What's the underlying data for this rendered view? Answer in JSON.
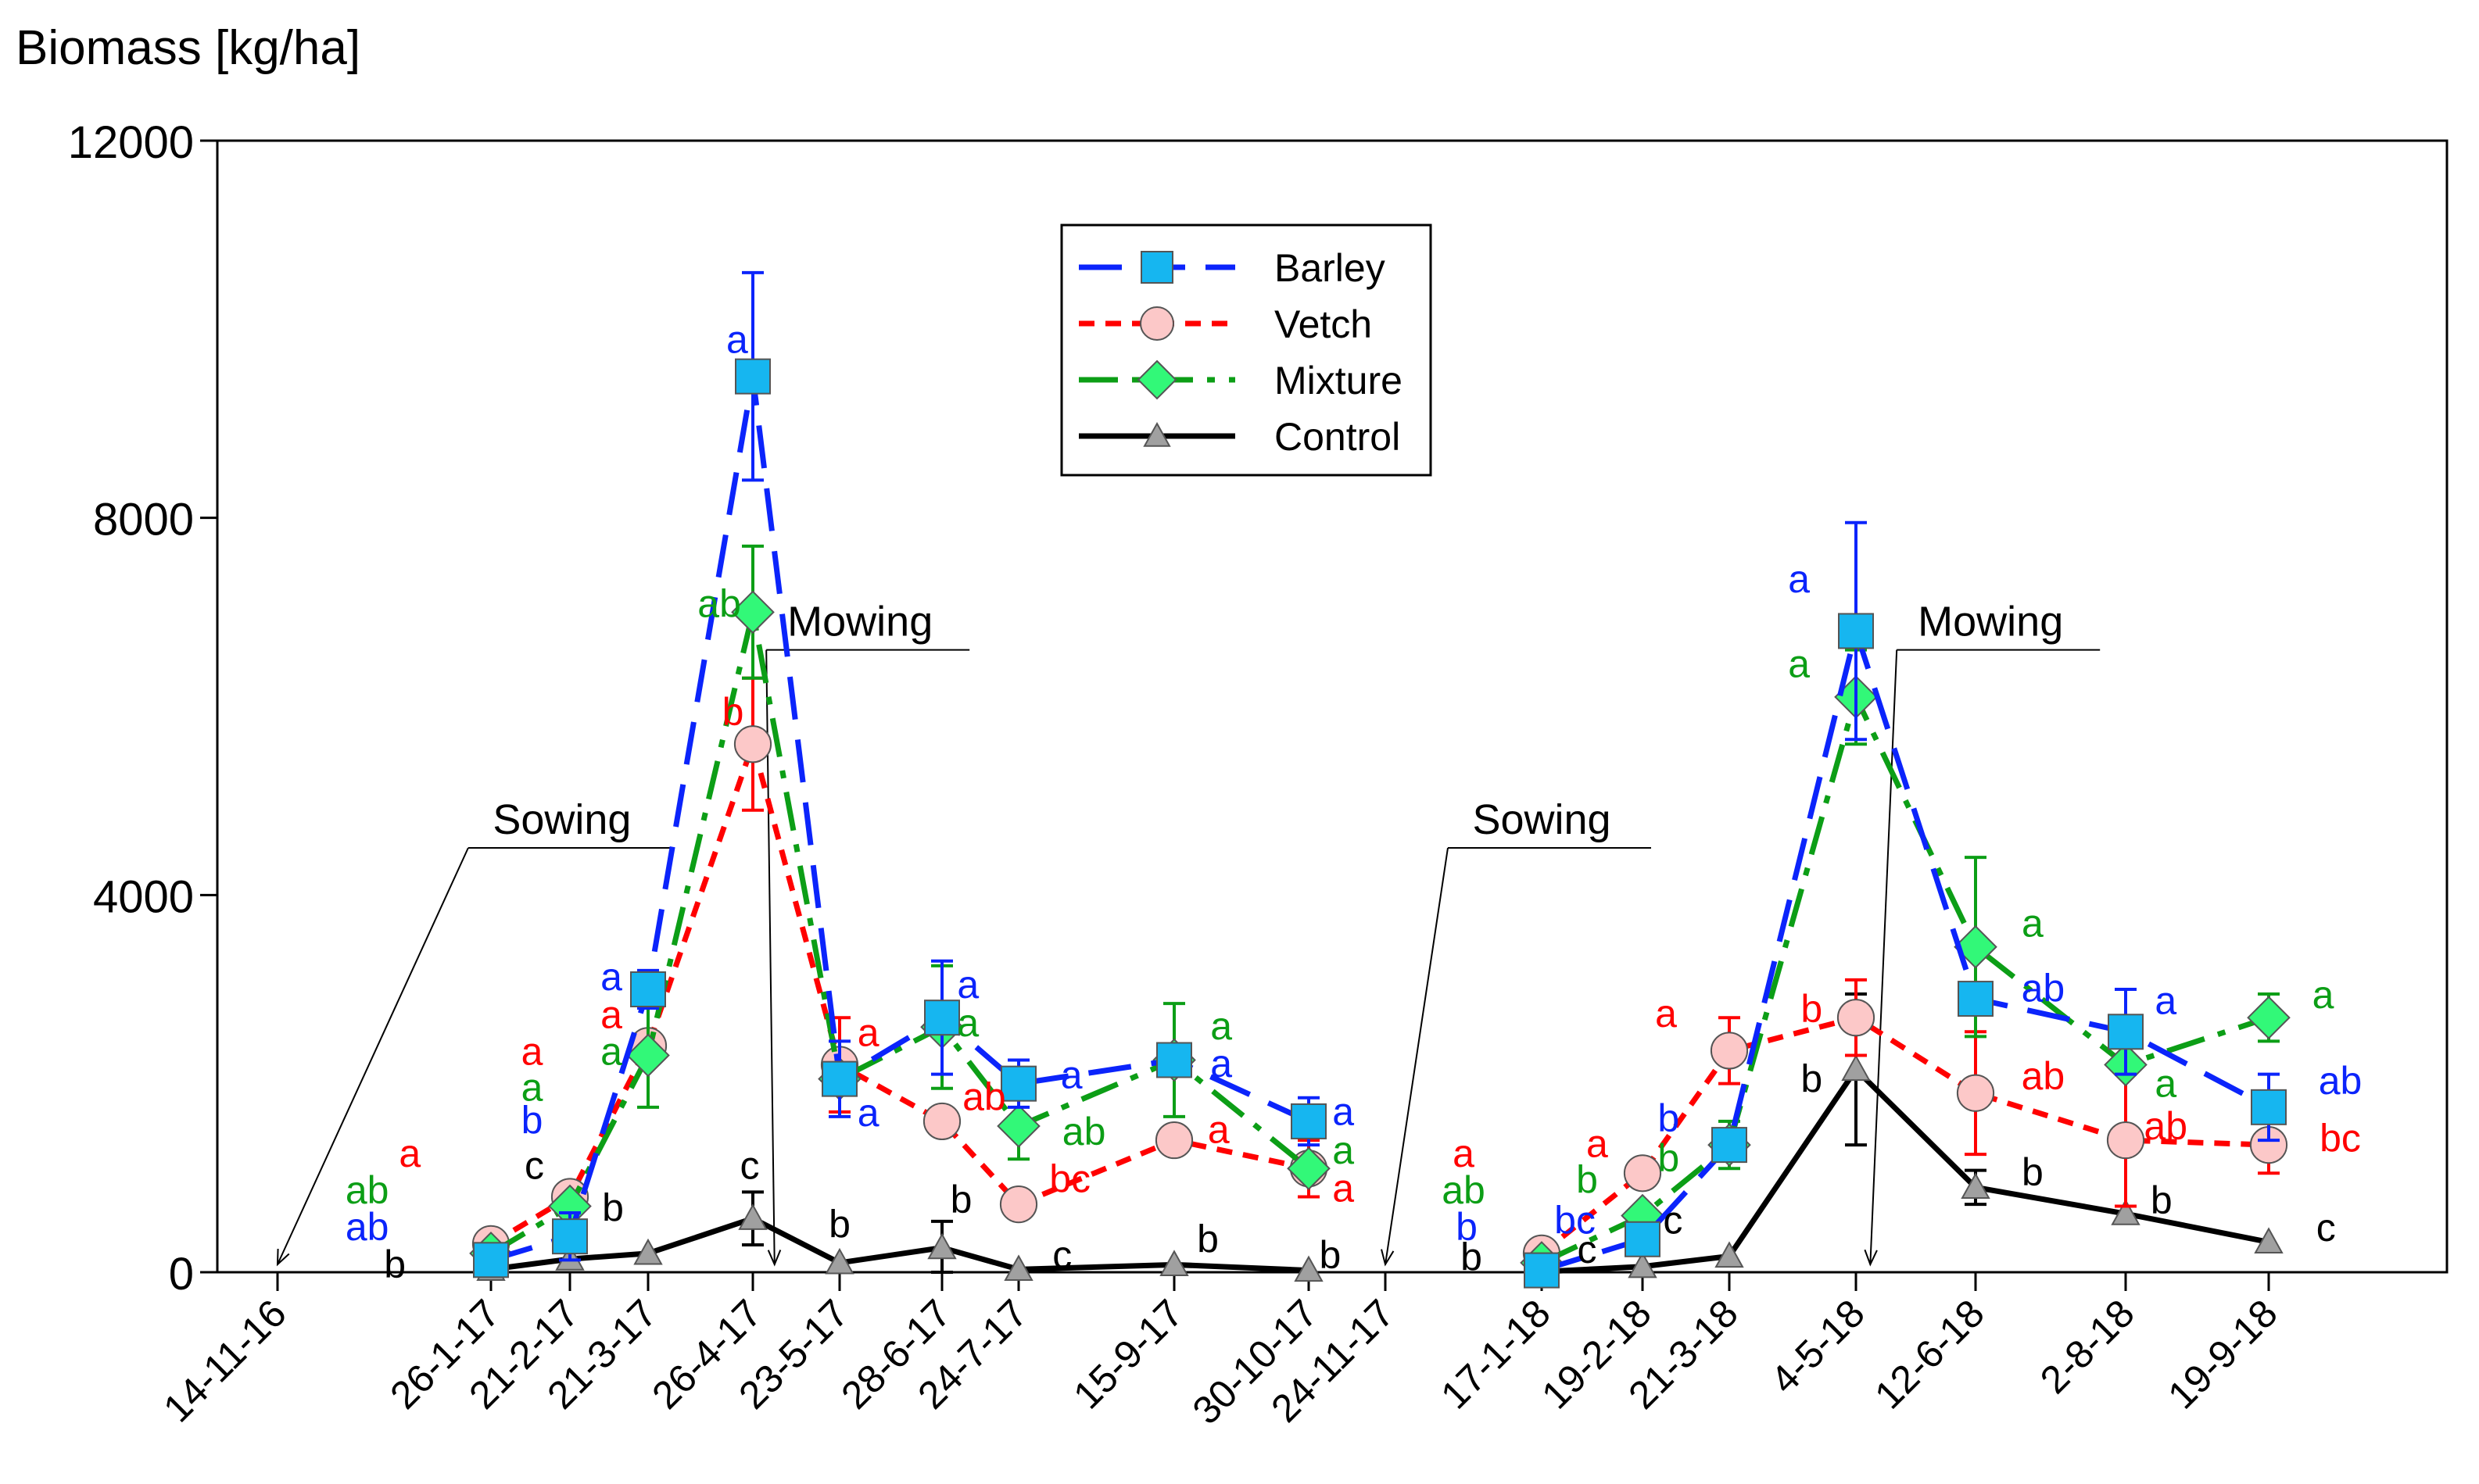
{
  "chart_data": {
    "type": "line",
    "title": "Biomass [kg/ha]",
    "ylim": [
      0,
      12000
    ],
    "yticks": [
      0,
      4000,
      8000,
      12000
    ],
    "categories": [
      "14-11-16",
      "26-1-17",
      "21-2-17",
      "21-3-17",
      "26-4-17",
      "23-5-17",
      "28-6-17",
      "24-7-17",
      "15-9-17",
      "30-10-17",
      "24-11-17",
      "17-1-18",
      "19-2-18",
      "21-3-18",
      "4-5-18",
      "12-6-18",
      "2-8-18",
      "19-9-18"
    ],
    "legend_position": "top-center",
    "series": [
      {
        "name": "Barley",
        "color": "#0b24fb",
        "fill": "#16b6f0",
        "marker": "square",
        "dash": "dash",
        "points": [
          [
            1,
            130
          ],
          [
            2,
            380
          ],
          [
            3,
            3000
          ],
          [
            4,
            9500
          ],
          [
            5,
            2050
          ],
          [
            6,
            2700
          ],
          [
            7,
            2000
          ],
          [
            8,
            2250
          ],
          [
            9,
            1600
          ],
          [
            11,
            20
          ],
          [
            12,
            350
          ],
          [
            13,
            1350
          ],
          [
            14,
            6800
          ],
          [
            15,
            2900
          ],
          [
            16,
            2550
          ],
          [
            17,
            1750
          ]
        ],
        "err": [
          null,
          250,
          200,
          1100,
          400,
          600,
          250,
          null,
          250,
          null,
          150,
          null,
          1150,
          null,
          450,
          350
        ]
      },
      {
        "name": "Vetch",
        "color": "#ff0000",
        "fill": "#fcc8c8",
        "marker": "circle",
        "dash": "dot",
        "points": [
          [
            1,
            300
          ],
          [
            2,
            800
          ],
          [
            3,
            2400
          ],
          [
            4,
            5600
          ],
          [
            5,
            2200
          ],
          [
            6,
            1600
          ],
          [
            7,
            720
          ],
          [
            8,
            1400
          ],
          [
            9,
            1100
          ],
          [
            11,
            200
          ],
          [
            12,
            1050
          ],
          [
            13,
            2350
          ],
          [
            14,
            2700
          ],
          [
            15,
            1900
          ],
          [
            16,
            1400
          ],
          [
            17,
            1350
          ]
        ],
        "err": [
          null,
          null,
          null,
          700,
          500,
          null,
          60,
          null,
          300,
          null,
          null,
          350,
          400,
          650,
          700,
          300
        ]
      },
      {
        "name": "Mixture",
        "color": "#0c9e16",
        "fill": "#32f878",
        "marker": "diamond",
        "dash": "dashdot",
        "points": [
          [
            1,
            200
          ],
          [
            2,
            700
          ],
          [
            3,
            2300
          ],
          [
            4,
            7000
          ],
          [
            5,
            2050
          ],
          [
            6,
            2600
          ],
          [
            7,
            1550
          ],
          [
            8,
            2250
          ],
          [
            9,
            1100
          ],
          [
            11,
            100
          ],
          [
            12,
            600
          ],
          [
            13,
            1350
          ],
          [
            14,
            6100
          ],
          [
            15,
            3450
          ],
          [
            16,
            2200
          ],
          [
            17,
            2700
          ]
        ],
        "err": [
          null,
          null,
          550,
          700,
          null,
          650,
          350,
          600,
          null,
          null,
          null,
          250,
          500,
          950,
          null,
          250
        ]
      },
      {
        "name": "Control",
        "color": "#000000",
        "fill": "#a0a0a0",
        "marker": "triangle",
        "dash": "solid",
        "points": [
          [
            1,
            30
          ],
          [
            2,
            140
          ],
          [
            3,
            200
          ],
          [
            4,
            570
          ],
          [
            5,
            100
          ],
          [
            6,
            260
          ],
          [
            7,
            30
          ],
          [
            8,
            80
          ],
          [
            9,
            20
          ],
          [
            11,
            5
          ],
          [
            12,
            60
          ],
          [
            13,
            170
          ],
          [
            14,
            2150
          ],
          [
            15,
            900
          ],
          [
            16,
            620
          ],
          [
            17,
            320
          ]
        ],
        "err": [
          null,
          null,
          null,
          280,
          null,
          280,
          null,
          null,
          null,
          null,
          null,
          null,
          800,
          180,
          null,
          null
        ]
      }
    ],
    "annotations": [
      {
        "text": "Sowing",
        "x": 0,
        "label_x": 1.9,
        "label_y": 4500
      },
      {
        "text": "Mowing",
        "x": 4.25,
        "label_x": 5.2,
        "label_y": 6600
      },
      {
        "text": "Sowing",
        "x": 10,
        "label_x": 11.0,
        "label_y": 4500
      },
      {
        "text": "Mowing",
        "x": 14.12,
        "label_x": 15.1,
        "label_y": 6600
      }
    ],
    "letters": [
      {
        "t": "a",
        "x": 0.62,
        "y": 1270,
        "c": "#ff0000"
      },
      {
        "t": "ab",
        "x": 0.42,
        "y": 880,
        "c": "#0c9e16"
      },
      {
        "t": "ab",
        "x": 0.42,
        "y": 490,
        "c": "#0b24fb"
      },
      {
        "t": "b",
        "x": 0.55,
        "y": 90,
        "c": "#000000"
      },
      {
        "t": "a",
        "x": 1.52,
        "y": 2350,
        "c": "#ff0000"
      },
      {
        "t": "a",
        "x": 1.52,
        "y": 1970,
        "c": "#0c9e16"
      },
      {
        "t": "b",
        "x": 1.52,
        "y": 1620,
        "c": "#0b24fb"
      },
      {
        "t": "c",
        "x": 1.55,
        "y": 1140,
        "c": "#000000"
      },
      {
        "t": "a",
        "x": 2.53,
        "y": 3140,
        "c": "#0b24fb"
      },
      {
        "t": "a",
        "x": 2.53,
        "y": 2740,
        "c": "#ff0000"
      },
      {
        "t": "a",
        "x": 2.53,
        "y": 2350,
        "c": "#0c9e16"
      },
      {
        "t": "b",
        "x": 2.55,
        "y": 690,
        "c": "#000000"
      },
      {
        "t": "a",
        "x": 3.85,
        "y": 9900,
        "c": "#0b24fb"
      },
      {
        "t": "ab",
        "x": 3.68,
        "y": 7100,
        "c": "#0c9e16"
      },
      {
        "t": "b",
        "x": 3.81,
        "y": 5950,
        "c": "#ff0000"
      },
      {
        "t": "c",
        "x": 3.97,
        "y": 1140,
        "c": "#000000"
      },
      {
        "t": "a",
        "x": 5.28,
        "y": 2550,
        "c": "#ff0000"
      },
      {
        "t": "a",
        "x": 5.28,
        "y": 1700,
        "c": "#0b24fb"
      },
      {
        "t": "b",
        "x": 5.0,
        "y": 520,
        "c": "#000000"
      },
      {
        "t": "a",
        "x": 6.34,
        "y": 3060,
        "c": "#0b24fb"
      },
      {
        "t": "a",
        "x": 6.34,
        "y": 2650,
        "c": "#0c9e16"
      },
      {
        "t": "ab",
        "x": 6.55,
        "y": 1870,
        "c": "#ff0000"
      },
      {
        "t": "b",
        "x": 6.25,
        "y": 780,
        "c": "#000000"
      },
      {
        "t": "a",
        "x": 7.34,
        "y": 2100,
        "c": "#0b24fb"
      },
      {
        "t": "ab",
        "x": 7.42,
        "y": 1500,
        "c": "#0c9e16"
      },
      {
        "t": "bc",
        "x": 7.33,
        "y": 1000,
        "c": "#ff0000"
      },
      {
        "t": "c",
        "x": 7.28,
        "y": 190,
        "c": "#000000"
      },
      {
        "t": "a",
        "x": 8.35,
        "y": 2620,
        "c": "#0c9e16"
      },
      {
        "t": "a",
        "x": 8.35,
        "y": 2220,
        "c": "#0b24fb"
      },
      {
        "t": "a",
        "x": 8.33,
        "y": 1520,
        "c": "#ff0000"
      },
      {
        "t": "b",
        "x": 8.25,
        "y": 360,
        "c": "#000000"
      },
      {
        "t": "a",
        "x": 9.45,
        "y": 1710,
        "c": "#0b24fb"
      },
      {
        "t": "a",
        "x": 9.45,
        "y": 1300,
        "c": "#0c9e16"
      },
      {
        "t": "a",
        "x": 9.45,
        "y": 900,
        "c": "#ff0000"
      },
      {
        "t": "b",
        "x": 9.28,
        "y": 190,
        "c": "#000000"
      },
      {
        "t": "a",
        "x": 10.5,
        "y": 1270,
        "c": "#ff0000"
      },
      {
        "t": "ab",
        "x": 10.5,
        "y": 880,
        "c": "#0c9e16"
      },
      {
        "t": "b",
        "x": 10.52,
        "y": 490,
        "c": "#0b24fb"
      },
      {
        "t": "b",
        "x": 10.55,
        "y": 170,
        "c": "#000000"
      },
      {
        "t": "a",
        "x": 11.55,
        "y": 1370,
        "c": "#ff0000"
      },
      {
        "t": "b",
        "x": 11.45,
        "y": 990,
        "c": "#0c9e16"
      },
      {
        "t": "bc",
        "x": 11.33,
        "y": 560,
        "c": "#0b24fb"
      },
      {
        "t": "c",
        "x": 11.45,
        "y": 250,
        "c": "#000000"
      },
      {
        "t": "a",
        "x": 12.27,
        "y": 2750,
        "c": "#ff0000"
      },
      {
        "t": "b",
        "x": 12.3,
        "y": 1640,
        "c": "#0b24fb"
      },
      {
        "t": "b",
        "x": 12.3,
        "y": 1220,
        "c": "#0c9e16"
      },
      {
        "t": "c",
        "x": 12.35,
        "y": 560,
        "c": "#000000"
      },
      {
        "t": "a",
        "x": 13.55,
        "y": 7360,
        "c": "#0b24fb"
      },
      {
        "t": "a",
        "x": 13.55,
        "y": 6460,
        "c": "#0c9e16"
      },
      {
        "t": "b",
        "x": 13.65,
        "y": 2800,
        "c": "#ff0000"
      },
      {
        "t": "b",
        "x": 13.65,
        "y": 2060,
        "c": "#000000"
      },
      {
        "t": "a",
        "x": 15.38,
        "y": 3710,
        "c": "#0c9e16"
      },
      {
        "t": "ab",
        "x": 15.45,
        "y": 3020,
        "c": "#0b24fb"
      },
      {
        "t": "ab",
        "x": 15.45,
        "y": 2090,
        "c": "#ff0000"
      },
      {
        "t": "b",
        "x": 15.38,
        "y": 1070,
        "c": "#000000"
      },
      {
        "t": "a",
        "x": 16.28,
        "y": 2890,
        "c": "#0b24fb"
      },
      {
        "t": "a",
        "x": 16.28,
        "y": 2010,
        "c": "#0c9e16"
      },
      {
        "t": "ab",
        "x": 16.28,
        "y": 1560,
        "c": "#ff0000"
      },
      {
        "t": "b",
        "x": 16.25,
        "y": 770,
        "c": "#000000"
      },
      {
        "t": "a",
        "x": 17.38,
        "y": 2950,
        "c": "#0c9e16"
      },
      {
        "t": "ab",
        "x": 17.5,
        "y": 2040,
        "c": "#0b24fb"
      },
      {
        "t": "bc",
        "x": 17.5,
        "y": 1430,
        "c": "#ff0000"
      },
      {
        "t": "c",
        "x": 17.4,
        "y": 480,
        "c": "#000000"
      }
    ]
  }
}
